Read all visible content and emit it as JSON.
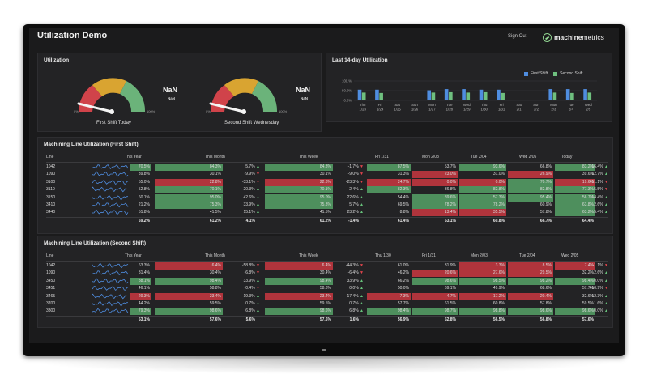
{
  "header": {
    "title": "Utilization Demo",
    "sign_out": "Sign Out",
    "brand_bold": "machine",
    "brand_rest": "metrics"
  },
  "utilization": {
    "title": "Utilization",
    "gauges": [
      {
        "value": "NaN",
        "sub": "NaN",
        "label": "First Shift Today",
        "max_label": "100%"
      },
      {
        "value": "NaN",
        "sub": "NaN",
        "label": "Second Shift Wednesday",
        "max_label": "100%"
      }
    ],
    "colors": {
      "red": "#d0434a",
      "orange": "#d9a431",
      "green": "#6bb37a"
    }
  },
  "last14": {
    "title": "Last 14-day Utilization",
    "legend": [
      "First Shift",
      "Second Shift"
    ],
    "colors": [
      "#4f8de0",
      "#6fc07f"
    ]
  },
  "chart_data": {
    "type": "bar",
    "ylabel": "",
    "yticks": [
      "100.%",
      "50.0%",
      "0.0%"
    ],
    "ylim": [
      0,
      100
    ],
    "categories": [
      "Thu 1/23",
      "Fri 1/24",
      "Sat 1/25",
      "Sun 1/26",
      "Mon 1/27",
      "Tue 1/28",
      "Wed 1/29",
      "Thu 1/30",
      "Fri 1/31",
      "Sat 2/1",
      "Sun 2/2",
      "Mon 2/3",
      "Tue 2/4",
      "Wed 2/5"
    ],
    "series": [
      {
        "name": "First Shift",
        "values": [
          55,
          55,
          0,
          0,
          52,
          58,
          58,
          55,
          55,
          0,
          0,
          58,
          58,
          58
        ]
      },
      {
        "name": "Second Shift",
        "values": [
          40,
          38,
          0,
          0,
          40,
          42,
          40,
          42,
          38,
          0,
          0,
          40,
          38,
          40
        ]
      }
    ]
  },
  "first_shift": {
    "title": "Machining Line Utilization (First Shift)",
    "headers": [
      "Line",
      "This Year",
      "This Month",
      "This Week",
      "Fri 1/31",
      "Mon 2/03",
      "Tue 2/04",
      "Wed 2/05",
      "Today"
    ],
    "rows": [
      {
        "line": "1042",
        "year": "70.5%",
        "month": "84.3%",
        "month_d": "5.7%",
        "month_dir": "up",
        "week": "84.3%",
        "week_d": "-1.7%",
        "week_dir": "down",
        "d1": "87.5%",
        "d2": "53.7%",
        "d3": "93.6%",
        "d4": "66.8%",
        "today": "83.2%",
        "today_d": "16.4%",
        "today_dir": "up",
        "c": [
          "g",
          "g",
          "g",
          "g",
          "",
          "g",
          "",
          "g"
        ]
      },
      {
        "line": "1090",
        "year": "39.8%",
        "month": "30.1%",
        "month_d": "-9.9%",
        "month_dir": "down",
        "week": "30.1%",
        "week_d": "-9.0%",
        "week_dir": "down",
        "d1": "31.3%",
        "d2": "23.0%",
        "d3": "31.0%",
        "d4": "26.9%",
        "today": "39.6%",
        "today_d": "12.7%",
        "today_dir": "up",
        "c": [
          "",
          "",
          "",
          "",
          "r",
          "",
          "r",
          ""
        ]
      },
      {
        "line": "3100",
        "year": "55.0%",
        "month": "22.8%",
        "month_d": "-33.1%",
        "month_dir": "down",
        "week": "22.8%",
        "week_d": "-23.3%",
        "week_dir": "down",
        "d1": "24.7%",
        "d2": "0.0%",
        "d3": "0.0%",
        "d4": "70.7%",
        "today": "19.6%",
        "today_d": "-51.1%",
        "today_dir": "down",
        "c": [
          "",
          "r",
          "r",
          "r",
          "r",
          "r",
          "g",
          "r"
        ]
      },
      {
        "line": "3110",
        "year": "52.8%",
        "month": "70.1%",
        "month_d": "20.3%",
        "month_dir": "up",
        "week": "70.1%",
        "week_d": "2.4%",
        "week_dir": "up",
        "d1": "82.3%",
        "d2": "36.8%",
        "d3": "82.8%",
        "d4": "82.8%",
        "today": "77.3%",
        "today_d": "-5.5%",
        "today_dir": "down",
        "c": [
          "",
          "g",
          "g",
          "g",
          "",
          "g",
          "g",
          "g"
        ]
      },
      {
        "line": "3150",
        "year": "60.1%",
        "month": "95.0%",
        "month_d": "42.6%",
        "month_dir": "up",
        "week": "95.0%",
        "week_d": "22.6%",
        "week_dir": "up",
        "d1": "54.4%",
        "d2": "89.6%",
        "d3": "57.3%",
        "d4": "95.4%",
        "today": "56.7%",
        "today_d": "14.4%",
        "today_dir": "up",
        "c": [
          "",
          "g",
          "g",
          "",
          "g",
          "g",
          "g",
          "g"
        ]
      },
      {
        "line": "3410",
        "year": "21.2%",
        "month": "75.3%",
        "month_d": "33.9%",
        "month_dir": "up",
        "week": "75.3%",
        "week_d": "5.7%",
        "week_dir": "up",
        "d1": "69.5%",
        "d2": "78.2%",
        "d3": "78.2%",
        "d4": "60.9%",
        "today": "63.8%",
        "today_d": "2.6%",
        "today_dir": "up",
        "c": [
          "",
          "g",
          "g",
          "",
          "g",
          "g",
          "",
          "g"
        ]
      },
      {
        "line": "3440",
        "year": "51.8%",
        "month": "41.5%",
        "month_d": "15.1%",
        "month_dir": "up",
        "week": "41.5%",
        "week_d": "23.2%",
        "week_dir": "up",
        "d1": "8.8%",
        "d2": "13.4%",
        "d3": "35.5%",
        "d4": "57.8%",
        "today": "63.2%",
        "today_d": "5.4%",
        "today_dir": "up",
        "c": [
          "",
          "",
          "",
          "",
          "r",
          "r",
          "",
          "g"
        ]
      }
    ],
    "totals": {
      "year": "59.2%",
      "month": "61.2%",
      "month_d": "4.1%",
      "week": "61.2%",
      "week_d": "-1.4%",
      "d1": "61.4%",
      "d2": "53.1%",
      "d3": "60.8%",
      "d4": "66.7%",
      "today": "64.4%"
    }
  },
  "second_shift": {
    "title": "Machining Line Utilization (Second Shift)",
    "headers": [
      "Line",
      "This Year",
      "This Month",
      "This Week",
      "Thu 1/30",
      "Fri 1/31",
      "Mon 2/03",
      "Tue 2/04",
      "Wed 2/05"
    ],
    "rows": [
      {
        "line": "1042",
        "year": "63.3%",
        "month": "6.4%",
        "month_d": "-58.8%",
        "month_dir": "down",
        "week": "6.4%",
        "week_d": "-44.3%",
        "week_dir": "down",
        "d1": "61.0%",
        "d2": "31.9%",
        "d3": "3.3%",
        "d4": "8.5%",
        "today": "7.4%",
        "today_d": "-1.1%",
        "today_dir": "down",
        "c": [
          "",
          "r",
          "r",
          "",
          "",
          "r",
          "r",
          "r"
        ]
      },
      {
        "line": "1090",
        "year": "31.4%",
        "month": "30.4%",
        "month_d": "-6.8%",
        "month_dir": "down",
        "week": "30.4%",
        "week_d": "-6.4%",
        "week_dir": "down",
        "d1": "46.2%",
        "d2": "20.6%",
        "d3": "27.6%",
        "d4": "29.5%",
        "today": "32.2%",
        "today_d": "2.6%",
        "today_dir": "up",
        "c": [
          "",
          "",
          "",
          "",
          "r",
          "r",
          "r",
          ""
        ]
      },
      {
        "line": "3450",
        "year": "88.1%",
        "month": "98.4%",
        "month_d": "33.9%",
        "month_dir": "up",
        "week": "98.4%",
        "week_d": "33.9%",
        "week_dir": "up",
        "d1": "66.2%",
        "d2": "98.6%",
        "d3": "98.5%",
        "d4": "98.2%",
        "today": "98.4%",
        "today_d": "0.0%",
        "today_dir": "up",
        "c": [
          "g",
          "g",
          "g",
          "",
          "g",
          "g",
          "g",
          "g"
        ]
      },
      {
        "line": "3451",
        "year": "46.1%",
        "month": "58.8%",
        "month_d": "-0.4%",
        "month_dir": "down",
        "week": "58.8%",
        "week_d": "0.0%",
        "week_dir": "up",
        "d1": "50.0%",
        "d2": "69.1%",
        "d3": "49.9%",
        "d4": "68.6%",
        "today": "57.7%",
        "today_d": "-10.9%",
        "today_dir": "down",
        "c": [
          "",
          "",
          "",
          "",
          "",
          "",
          "",
          ""
        ]
      },
      {
        "line": "3465",
        "year": "29.3%",
        "month": "23.4%",
        "month_d": "19.3%",
        "month_dir": "up",
        "week": "23.4%",
        "week_d": "17.4%",
        "week_dir": "up",
        "d1": "7.3%",
        "d2": "4.7%",
        "d3": "17.2%",
        "d4": "20.4%",
        "today": "32.6%",
        "today_d": "12.3%",
        "today_dir": "up",
        "c": [
          "r",
          "r",
          "r",
          "r",
          "r",
          "r",
          "r",
          ""
        ]
      },
      {
        "line": "3700",
        "year": "44.2%",
        "month": "59.5%",
        "month_d": "0.7%",
        "month_dir": "up",
        "week": "59.5%",
        "week_d": "0.7%",
        "week_dir": "up",
        "d1": "57.7%",
        "d2": "61.5%",
        "d3": "60.8%",
        "d4": "57.8%",
        "today": "59.5%",
        "today_d": "1.6%",
        "today_dir": "up",
        "c": [
          "",
          "",
          "",
          "",
          "",
          "",
          "",
          ""
        ]
      },
      {
        "line": "3800",
        "year": "79.3%",
        "month": "98.6%",
        "month_d": "6.8%",
        "month_dir": "up",
        "week": "98.6%",
        "week_d": "6.8%",
        "week_dir": "up",
        "d1": "98.4%",
        "d2": "98.7%",
        "d3": "98.8%",
        "d4": "98.6%",
        "today": "98.6%",
        "today_d": "0.0%",
        "today_dir": "up",
        "c": [
          "g",
          "g",
          "g",
          "g",
          "g",
          "g",
          "g",
          "g"
        ]
      }
    ],
    "totals": {
      "year": "53.1%",
      "month": "57.6%",
      "month_d": "5.6%",
      "week": "57.6%",
      "week_d": "1.6%",
      "d1": "56.9%",
      "d2": "52.8%",
      "d3": "56.5%",
      "d4": "56.8%",
      "today": "57.6%"
    }
  }
}
